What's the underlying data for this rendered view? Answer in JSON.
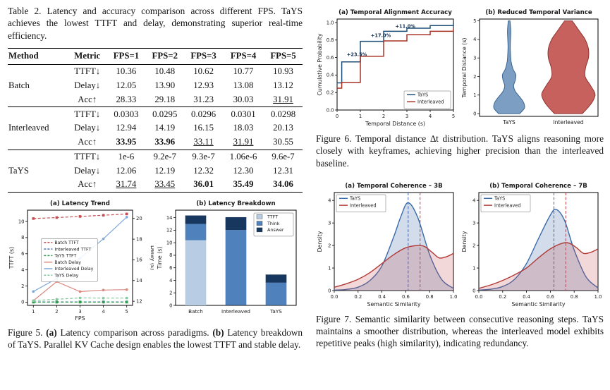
{
  "page": {
    "background": "#ffffff"
  },
  "table": {
    "caption": "Table 2. Latency and accuracy comparison across different FPS. TaYS achieves the lowest TTFT and delay, demonstrating superior real-time efficiency.",
    "headers": [
      "Method",
      "Metric",
      "FPS=1",
      "FPS=2",
      "FPS=3",
      "FPS=4",
      "FPS=5"
    ],
    "groups": [
      {
        "method": "Batch",
        "rows": [
          {
            "metric": "TTFT↓",
            "cells": [
              {
                "v": "10.36"
              },
              {
                "v": "10.48"
              },
              {
                "v": "10.62"
              },
              {
                "v": "10.77"
              },
              {
                "v": "10.93"
              }
            ]
          },
          {
            "metric": "Delay↓",
            "cells": [
              {
                "v": "12.05"
              },
              {
                "v": "13.90"
              },
              {
                "v": "12.93"
              },
              {
                "v": "13.08"
              },
              {
                "v": "13.12"
              }
            ]
          },
          {
            "metric": "Acc↑",
            "cells": [
              {
                "v": "28.33"
              },
              {
                "v": "29.18"
              },
              {
                "v": "31.23"
              },
              {
                "v": "30.03"
              },
              {
                "v": "31.91",
                "u": true
              }
            ]
          }
        ]
      },
      {
        "method": "Interleaved",
        "rows": [
          {
            "metric": "TTFT↓",
            "cells": [
              {
                "v": "0.0303"
              },
              {
                "v": "0.0295"
              },
              {
                "v": "0.0296"
              },
              {
                "v": "0.0301"
              },
              {
                "v": "0.0298"
              }
            ]
          },
          {
            "metric": "Delay↓",
            "cells": [
              {
                "v": "12.94"
              },
              {
                "v": "14.19"
              },
              {
                "v": "16.15"
              },
              {
                "v": "18.03"
              },
              {
                "v": "20.13"
              }
            ]
          },
          {
            "metric": "Acc↑",
            "cells": [
              {
                "v": "33.95",
                "b": true
              },
              {
                "v": "33.96",
                "b": true
              },
              {
                "v": "33.11",
                "u": true
              },
              {
                "v": "31.91",
                "u": true
              },
              {
                "v": "30.55"
              }
            ]
          }
        ]
      },
      {
        "method": "TaYS",
        "rows": [
          {
            "metric": "TTFT↓",
            "cells": [
              {
                "v": "1e-6"
              },
              {
                "v": "9.2e-7"
              },
              {
                "v": "9.3e-7"
              },
              {
                "v": "1.06e-6"
              },
              {
                "v": "9.6e-7"
              }
            ]
          },
          {
            "metric": "Delay↓",
            "cells": [
              {
                "v": "12.06"
              },
              {
                "v": "12.19"
              },
              {
                "v": "12.32"
              },
              {
                "v": "12.30"
              },
              {
                "v": "12.31"
              }
            ]
          },
          {
            "metric": "Acc↑",
            "cells": [
              {
                "v": "31.74",
                "u": true
              },
              {
                "v": "33.45",
                "u": true
              },
              {
                "v": "36.01",
                "b": true
              },
              {
                "v": "35.49",
                "b": true
              },
              {
                "v": "34.06",
                "b": true
              }
            ]
          }
        ]
      }
    ]
  },
  "captions": {
    "table2": [
      {
        "t": "Table 2. Latency and accuracy comparison across different FPS. TaYS achieves the lowest TTFT and delay, demonstrating superior real-time efficiency.",
        "b": false
      }
    ],
    "fig5": [
      {
        "t": "Figure 5. ",
        "b": false
      },
      {
        "t": "(a)",
        "b": true
      },
      {
        "t": " Latency comparison across paradigms. ",
        "b": false
      },
      {
        "t": "(b)",
        "b": true
      },
      {
        "t": " Latency breakdown of TaYS. Parallel KV Cache design enables the lowest TTFT and stable delay.",
        "b": false
      }
    ],
    "fig6": [
      {
        "t": "Figure 6. Temporal distance ∆t distribution. TaYS aligns reasoning more closely with keyframes, achieving higher precision than the interleaved baseline.",
        "b": false
      }
    ],
    "fig7": [
      {
        "t": "Figure 7. Semantic similarity between consecutive reasoning steps. TaYS maintains a smoother distribution, whereas the interleaved model exhibits repetitive peaks (high similarity), indicating redundancy.",
        "b": false
      }
    ]
  },
  "chart_data": [
    {
      "id": "fig5a",
      "type": "line",
      "title": "(a) Latency Trend",
      "xlabel": "FPS",
      "ylabel": "TTFT (s)",
      "ylabel_right": "Delay (s)",
      "x": [
        1,
        2,
        3,
        4,
        5
      ],
      "xlim": [
        0.75,
        5.25
      ],
      "ylim": [
        -0.4,
        11.4
      ],
      "yticks": [
        0,
        2,
        4,
        6,
        8,
        10
      ],
      "ylim_right": [
        11.6,
        20.8
      ],
      "yticks_right": [
        12,
        14,
        16,
        18,
        20
      ],
      "xticks": [
        1,
        2,
        3,
        4,
        5
      ],
      "series": [
        {
          "name": "Batch TTFT",
          "axis": "left",
          "color": "#c44e52",
          "dash": true,
          "marker": "s",
          "values": [
            10.36,
            10.48,
            10.62,
            10.77,
            10.93
          ]
        },
        {
          "name": "Interleaved TTFT",
          "axis": "left",
          "color": "#4c72b0",
          "dash": true,
          "marker": "s",
          "values": [
            0.0303,
            0.0295,
            0.0296,
            0.0301,
            0.0298
          ]
        },
        {
          "name": "TaYS TTFT",
          "axis": "left",
          "color": "#2e9e4f",
          "dash": true,
          "marker": "s",
          "values": [
            1e-06,
            9.2e-07,
            9.3e-07,
            1.06e-06,
            9.6e-07
          ]
        },
        {
          "name": "Batch Delay",
          "axis": "right",
          "color": "#d98880",
          "dash": false,
          "marker": "o",
          "values": [
            12.05,
            13.9,
            12.93,
            13.08,
            13.12
          ]
        },
        {
          "name": "Interleaved Delay",
          "axis": "right",
          "color": "#7fa8d9",
          "dash": false,
          "marker": "o",
          "values": [
            12.94,
            14.19,
            16.15,
            18.03,
            20.13
          ]
        },
        {
          "name": "TaYS Delay",
          "axis": "right",
          "color": "#82c99c",
          "dash": true,
          "marker": "o",
          "values": [
            12.06,
            12.19,
            12.32,
            12.3,
            12.31
          ]
        }
      ]
    },
    {
      "id": "fig5b",
      "type": "stacked_bar",
      "title": "(b) Latency Breakdown",
      "ylabel": "Time (s)",
      "categories": [
        "Batch",
        "Interleaved",
        "TaYS"
      ],
      "ylim": [
        0,
        15.2
      ],
      "yticks": [
        0,
        2,
        4,
        6,
        8,
        10,
        12,
        14
      ],
      "stack_labels": [
        "TTFT",
        "Think",
        "Answer"
      ],
      "stack_colors": [
        "#b8cce4",
        "#4f81bd",
        "#17375e"
      ],
      "series": [
        {
          "name": "TTFT",
          "values": [
            10.4,
            0.03,
            0.02
          ]
        },
        {
          "name": "Think",
          "values": [
            2.6,
            12.0,
            3.6
          ]
        },
        {
          "name": "Answer",
          "values": [
            1.35,
            2.05,
            1.3
          ]
        }
      ]
    },
    {
      "id": "fig6a",
      "type": "cdf",
      "title": "(a) Temporal Alignment Accuracy",
      "xlabel": "Temporal Distance (s)",
      "ylabel": "Cumulative Probability",
      "xlim": [
        0,
        5
      ],
      "ylim": [
        0,
        1.04
      ],
      "xticks": [
        0,
        1,
        2,
        3,
        4,
        5
      ],
      "yticks": [
        0,
        0.2,
        0.4,
        0.6,
        0.8,
        1.0
      ],
      "ydec": 1,
      "series": [
        {
          "name": "TaYS",
          "color": "#1f4e79",
          "steps": [
            [
              0,
              0.31
            ],
            [
              0.2,
              0.55
            ],
            [
              1,
              0.785
            ],
            [
              2,
              0.9
            ],
            [
              3,
              0.935
            ],
            [
              4,
              0.965
            ],
            [
              5,
              1.0
            ]
          ]
        },
        {
          "name": "Interleaved",
          "color": "#a93226",
          "steps": [
            [
              0,
              0.25
            ],
            [
              0.2,
              0.315
            ],
            [
              1,
              0.615
            ],
            [
              2,
              0.79
            ],
            [
              3,
              0.86
            ],
            [
              4,
              0.9
            ],
            [
              5,
              0.93
            ]
          ]
        }
      ],
      "annotations": [
        {
          "text": "+23.5%",
          "x": 0.42,
          "y": 0.615
        },
        {
          "text": "+17.0%",
          "x": 1.45,
          "y": 0.835
        },
        {
          "text": "+11.0%",
          "x": 2.5,
          "y": 0.94
        }
      ],
      "legend_pos": "lower right"
    },
    {
      "id": "fig6b",
      "type": "violin",
      "title": "(b) Reduced Temporal Variance",
      "ylabel": "Temporal Distance (s)",
      "ylim": [
        -0.15,
        5.1
      ],
      "yticks": [
        0,
        1,
        2,
        3,
        4,
        5
      ],
      "violins": [
        {
          "name": "TaYS",
          "color": "#6d93bb",
          "edge": "#3c6591",
          "profile": [
            [
              0,
              0.38
            ],
            [
              0.3,
              0.55
            ],
            [
              0.6,
              0.52
            ],
            [
              0.9,
              0.38
            ],
            [
              1.2,
              0.22
            ],
            [
              1.5,
              0.16
            ],
            [
              1.8,
              0.22
            ],
            [
              2.1,
              0.24
            ],
            [
              2.4,
              0.14
            ],
            [
              2.8,
              0.07
            ],
            [
              3.2,
              0.05
            ],
            [
              3.6,
              0.04
            ],
            [
              4.0,
              0.05
            ],
            [
              4.4,
              0.06
            ],
            [
              4.7,
              0.05
            ],
            [
              5,
              0.03
            ]
          ]
        },
        {
          "name": "Interleaved",
          "color": "#c0504d",
          "edge": "#8f3330",
          "profile": [
            [
              0,
              0.5
            ],
            [
              0.4,
              0.75
            ],
            [
              0.8,
              0.92
            ],
            [
              1.1,
              0.95
            ],
            [
              1.5,
              0.8
            ],
            [
              2,
              0.6
            ],
            [
              2.5,
              0.62
            ],
            [
              3,
              0.72
            ],
            [
              3.5,
              0.72
            ],
            [
              4,
              0.6
            ],
            [
              4.4,
              0.42
            ],
            [
              4.7,
              0.28
            ],
            [
              5,
              0.14
            ]
          ]
        }
      ]
    },
    {
      "id": "fig7a",
      "type": "kde",
      "title": "(a) Temporal Coherence – 3B",
      "xlabel": "Semantic Similarity",
      "ylabel": "Density",
      "xlim": [
        0,
        1
      ],
      "ylim": [
        0,
        4.35
      ],
      "xticks": [
        0,
        0.2,
        0.4,
        0.6,
        0.8,
        1.0
      ],
      "xdec": 1,
      "yticks": [
        0,
        1,
        2,
        3,
        4
      ],
      "vlines": [
        {
          "x": 0.62,
          "color": "#4c72b0"
        },
        {
          "x": 0.72,
          "color": "#c44e52"
        }
      ],
      "series": [
        {
          "name": "TaYS",
          "color": "#3a6aa8",
          "fill": "rgba(76,114,176,0.25)",
          "points": [
            [
              0,
              0.02
            ],
            [
              0.1,
              0.05
            ],
            [
              0.2,
              0.15
            ],
            [
              0.3,
              0.45
            ],
            [
              0.4,
              1.1
            ],
            [
              0.5,
              2.4
            ],
            [
              0.56,
              3.3
            ],
            [
              0.62,
              3.9
            ],
            [
              0.7,
              3.25
            ],
            [
              0.8,
              1.6
            ],
            [
              0.9,
              0.5
            ],
            [
              1.0,
              0.1
            ]
          ]
        },
        {
          "name": "Interleaved",
          "color": "#b03a36",
          "fill": "rgba(196,78,82,0.22)",
          "points": [
            [
              0,
              0.15
            ],
            [
              0.1,
              0.3
            ],
            [
              0.2,
              0.5
            ],
            [
              0.3,
              0.8
            ],
            [
              0.4,
              1.2
            ],
            [
              0.5,
              1.6
            ],
            [
              0.6,
              1.9
            ],
            [
              0.7,
              2.0
            ],
            [
              0.76,
              1.95
            ],
            [
              0.82,
              1.7
            ],
            [
              0.88,
              1.45
            ],
            [
              0.94,
              1.5
            ],
            [
              1.0,
              1.65
            ]
          ]
        }
      ],
      "legend_pos": "upper left"
    },
    {
      "id": "fig7b",
      "type": "kde",
      "title": "(b) Temporal Coherence – 7B",
      "xlabel": "Semantic Similarity",
      "ylabel": "Density",
      "xlim": [
        0,
        1
      ],
      "ylim": [
        0,
        4.35
      ],
      "xticks": [
        0,
        0.2,
        0.4,
        0.6,
        0.8,
        1.0
      ],
      "xdec": 1,
      "yticks": [
        0,
        1,
        2,
        3,
        4
      ],
      "vlines": [
        {
          "x": 0.63,
          "color": "#4c72b0"
        },
        {
          "x": 0.73,
          "color": "#c44e52"
        }
      ],
      "series": [
        {
          "name": "TaYS",
          "color": "#3a6aa8",
          "fill": "rgba(76,114,176,0.25)",
          "points": [
            [
              0,
              0.02
            ],
            [
              0.1,
              0.06
            ],
            [
              0.2,
              0.18
            ],
            [
              0.3,
              0.5
            ],
            [
              0.4,
              1.2
            ],
            [
              0.5,
              2.3
            ],
            [
              0.6,
              3.35
            ],
            [
              0.65,
              3.6
            ],
            [
              0.72,
              3.1
            ],
            [
              0.8,
              1.8
            ],
            [
              0.9,
              0.6
            ],
            [
              1.0,
              0.12
            ]
          ]
        },
        {
          "name": "Interleaved",
          "color": "#b03a36",
          "fill": "rgba(196,78,82,0.22)",
          "points": [
            [
              0,
              0.1
            ],
            [
              0.1,
              0.25
            ],
            [
              0.2,
              0.45
            ],
            [
              0.3,
              0.7
            ],
            [
              0.4,
              1.0
            ],
            [
              0.5,
              1.45
            ],
            [
              0.6,
              1.85
            ],
            [
              0.7,
              2.1
            ],
            [
              0.76,
              2.1
            ],
            [
              0.82,
              1.9
            ],
            [
              0.88,
              1.65
            ],
            [
              0.94,
              1.7
            ],
            [
              1.0,
              1.85
            ]
          ]
        }
      ],
      "legend_pos": "upper left"
    }
  ]
}
